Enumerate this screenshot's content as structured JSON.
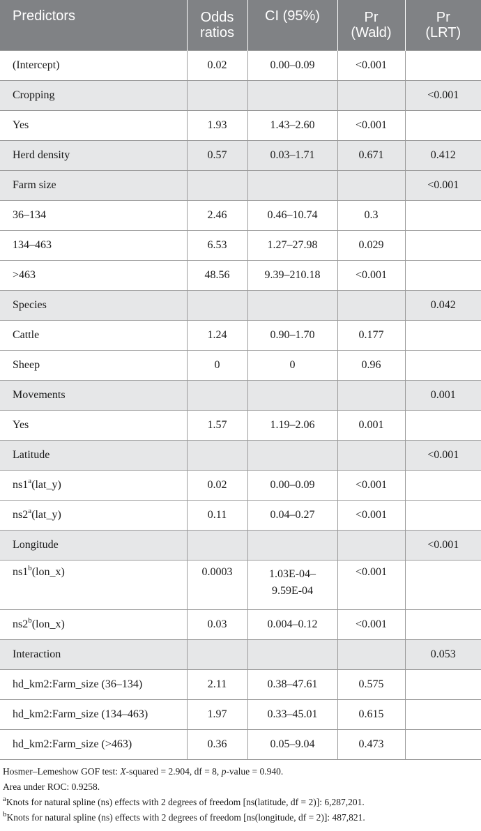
{
  "table": {
    "headers": [
      "Predictors",
      "Odds ratios",
      "CI (95%)",
      "Pr (Wald)",
      "Pr (LRT)"
    ],
    "header_lines": {
      "predictors": "Predictors",
      "or_1": "Odds",
      "or_2": "ratios",
      "ci": "CI (95%)",
      "wald_1": "Pr",
      "wald_2": "(Wald)",
      "lrt_1": "Pr",
      "lrt_2": "(LRT)"
    },
    "rows": [
      {
        "predictor": "(Intercept)",
        "or": "0.02",
        "ci": "0.00–0.09",
        "wald": "<0.001",
        "lrt": ""
      },
      {
        "predictor": "Cropping",
        "or": "",
        "ci": "",
        "wald": "",
        "lrt": "<0.001"
      },
      {
        "predictor": "Yes",
        "or": "1.93",
        "ci": "1.43–2.60",
        "wald": "<0.001",
        "lrt": ""
      },
      {
        "predictor": "Herd density",
        "or": "0.57",
        "ci": "0.03–1.71",
        "wald": "0.671",
        "lrt": "0.412"
      },
      {
        "predictor": "Farm size",
        "or": "",
        "ci": "",
        "wald": "",
        "lrt": "<0.001"
      },
      {
        "predictor": "36–134",
        "or": "2.46",
        "ci": "0.46–10.74",
        "wald": "0.3",
        "lrt": ""
      },
      {
        "predictor": "134–463",
        "or": "6.53",
        "ci": "1.27–27.98",
        "wald": "0.029",
        "lrt": ""
      },
      {
        "predictor": ">463",
        "or": "48.56",
        "ci": "9.39–210.18",
        "wald": "<0.001",
        "lrt": ""
      },
      {
        "predictor": "Species",
        "or": "",
        "ci": "",
        "wald": "",
        "lrt": "0.042"
      },
      {
        "predictor": "Cattle",
        "or": "1.24",
        "ci": "0.90–1.70",
        "wald": "0.177",
        "lrt": ""
      },
      {
        "predictor": "Sheep",
        "or": "0",
        "ci": "0",
        "wald": "0.96",
        "lrt": ""
      },
      {
        "predictor": "Movements",
        "or": "",
        "ci": "",
        "wald": "",
        "lrt": "0.001"
      },
      {
        "predictor": "Yes",
        "or": "1.57",
        "ci": "1.19–2.06",
        "wald": "0.001",
        "lrt": ""
      },
      {
        "predictor": "Latitude",
        "or": "",
        "ci": "",
        "wald": "",
        "lrt": "<0.001"
      },
      {
        "predictor": "ns1",
        "sup": "a",
        "suffix": "(lat_y)",
        "or": "0.02",
        "ci": "0.00–0.09",
        "wald": "<0.001",
        "lrt": ""
      },
      {
        "predictor": "ns2",
        "sup": "a",
        "suffix": "(lat_y)",
        "or": "0.11",
        "ci": "0.04–0.27",
        "wald": "<0.001",
        "lrt": ""
      },
      {
        "predictor": "Longitude",
        "or": "",
        "ci": "",
        "wald": "",
        "lrt": "<0.001"
      },
      {
        "predictor": "ns1",
        "sup": "b",
        "suffix": "(lon_x)",
        "or": "0.0003",
        "ci_1": "1.03E-04–",
        "ci_2": "9.59E-04",
        "wald": "<0.001",
        "lrt": ""
      },
      {
        "predictor": "ns2",
        "sup": "b",
        "suffix": "(lon_x)",
        "or": "0.03",
        "ci": "0.004–0.12",
        "wald": "<0.001",
        "lrt": ""
      },
      {
        "predictor": "Interaction",
        "or": "",
        "ci": "",
        "wald": "",
        "lrt": "0.053"
      },
      {
        "predictor": "hd_km2:Farm_size (36–134)",
        "or": "2.11",
        "ci": "0.38–47.61",
        "wald": "0.575",
        "lrt": ""
      },
      {
        "predictor": "hd_km2:Farm_size (134–463)",
        "or": "1.97",
        "ci": "0.33–45.01",
        "wald": "0.615",
        "lrt": ""
      },
      {
        "predictor": "hd_km2:Farm_size (>463)",
        "or": "0.36",
        "ci": "0.05–9.04",
        "wald": "0.473",
        "lrt": ""
      }
    ]
  },
  "notes": {
    "gof_1": "Hosmer–Lemeshow GOF test: ",
    "gof_x": "X",
    "gof_2": "-squared = 2.904, df = 8, ",
    "gof_p": "p",
    "gof_3": "-value = 0.940.",
    "auc": "Area under ROC: 0.9258.",
    "note_a_mark": "a",
    "note_a": "Knots for natural spline (ns) effects with 2 degrees of freedom [ns(latitude, df = 2)]: 6,287,201.",
    "note_b_mark": "b",
    "note_b": "Knots for natural spline (ns) effects with 2 degrees of freedom [ns(longitude, df = 2)]: 487,821."
  }
}
